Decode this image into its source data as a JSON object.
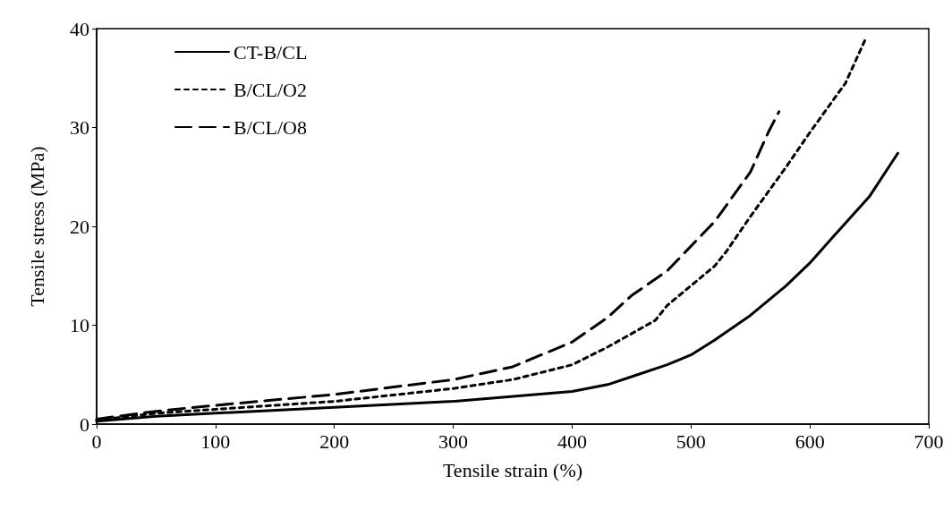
{
  "chart_data": {
    "type": "line",
    "xlabel": "Tensile strain (%)",
    "ylabel": "Tensile stress (MPa)",
    "xlim": [
      0,
      700
    ],
    "xticks": [
      0,
      100,
      200,
      300,
      400,
      500,
      600,
      700
    ],
    "ylim": [
      0,
      40
    ],
    "yticks": [
      0,
      10,
      20,
      30,
      40
    ],
    "grid": false,
    "legend": "top left",
    "marker": "none",
    "series": [
      {
        "name": "CT-B/CL",
        "color": "#000000",
        "line_style": "solid",
        "x": [
          0,
          50,
          100,
          200,
          300,
          400,
          430,
          450,
          480,
          500,
          520,
          550,
          580,
          600,
          620,
          650,
          674
        ],
        "values": [
          0.3,
          0.8,
          1.1,
          1.7,
          2.3,
          3.3,
          4,
          4.8,
          6,
          7,
          8.5,
          11,
          14,
          16.3,
          19,
          23,
          27.4
        ]
      },
      {
        "name": "B/CL/O2",
        "color": "#000000",
        "line_style": "dotted",
        "x": [
          0,
          50,
          100,
          200,
          300,
          350,
          400,
          430,
          470,
          480,
          500,
          520,
          530,
          550,
          580,
          600,
          630,
          647
        ],
        "values": [
          0.4,
          1.1,
          1.5,
          2.3,
          3.6,
          4.5,
          6,
          7.8,
          10.5,
          12,
          14,
          16,
          17.5,
          21,
          26,
          29.5,
          34.5,
          39
        ]
      },
      {
        "name": "B/CL/O8",
        "color": "#000000",
        "line_style": "dashed",
        "x": [
          0,
          50,
          100,
          200,
          300,
          350,
          400,
          430,
          450,
          480,
          500,
          520,
          550,
          565,
          574
        ],
        "values": [
          0.5,
          1.3,
          1.9,
          3,
          4.5,
          5.8,
          8.3,
          10.8,
          13,
          15.5,
          18,
          20.5,
          25.5,
          29.5,
          31.6
        ]
      }
    ]
  }
}
